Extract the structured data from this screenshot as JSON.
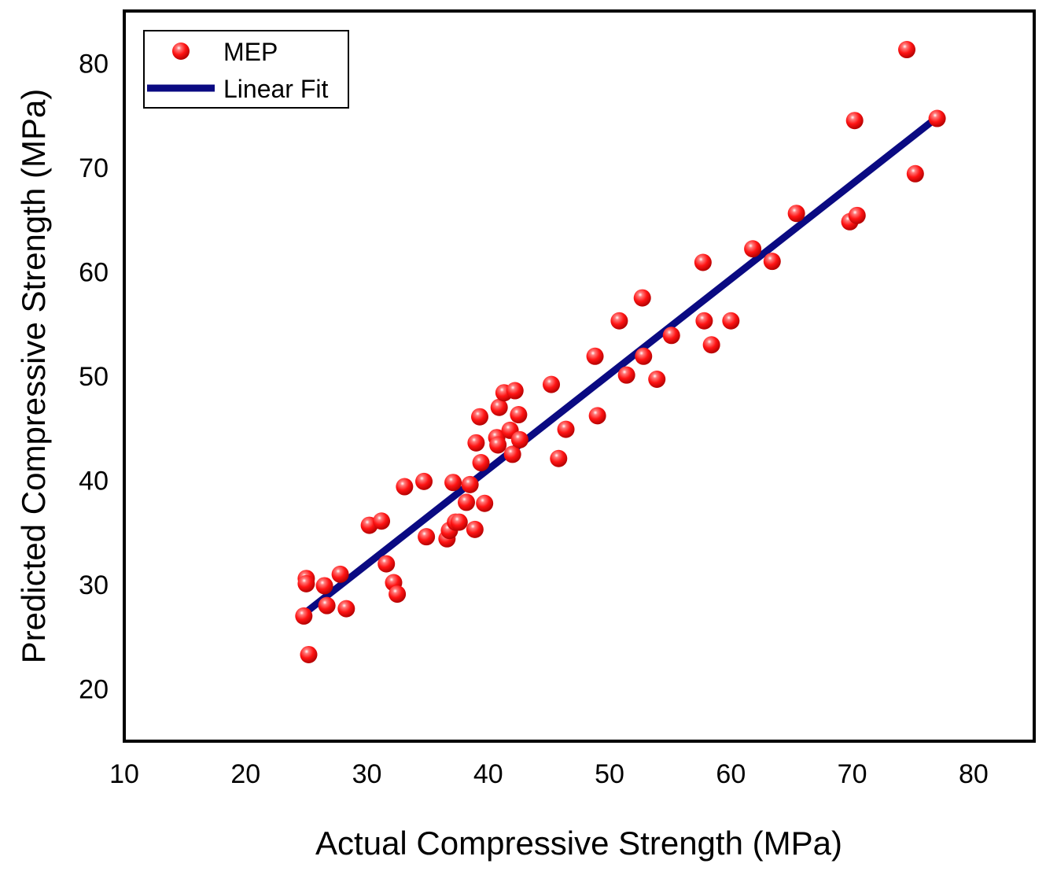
{
  "chart_data": {
    "type": "scatter",
    "xlabel": "Actual Compressive Strength (MPa)",
    "ylabel": "Predicted Compressive Strength (MPa)",
    "xlim": [
      10,
      85
    ],
    "ylim": [
      15,
      85
    ],
    "xticks": [
      10,
      20,
      30,
      40,
      50,
      60,
      70,
      80
    ],
    "yticks": [
      20,
      30,
      40,
      50,
      60,
      70,
      80
    ],
    "grid": false,
    "legend_position": "top-left",
    "series": [
      {
        "name": "MEP",
        "kind": "scatter",
        "color": "#ff1a1a",
        "points": [
          [
            24.8,
            27.0
          ],
          [
            25.2,
            23.3
          ],
          [
            25.0,
            30.6
          ],
          [
            25.0,
            30.1
          ],
          [
            26.5,
            29.9
          ],
          [
            26.7,
            28.0
          ],
          [
            27.8,
            31.0
          ],
          [
            28.3,
            27.7
          ],
          [
            30.2,
            35.7
          ],
          [
            31.2,
            36.1
          ],
          [
            31.6,
            32.0
          ],
          [
            32.2,
            30.2
          ],
          [
            32.5,
            29.1
          ],
          [
            33.1,
            39.4
          ],
          [
            34.7,
            39.9
          ],
          [
            34.9,
            34.6
          ],
          [
            36.6,
            34.4
          ],
          [
            36.8,
            35.2
          ],
          [
            37.1,
            39.8
          ],
          [
            37.3,
            36.0
          ],
          [
            37.6,
            36.0
          ],
          [
            38.2,
            37.9
          ],
          [
            38.5,
            39.6
          ],
          [
            38.9,
            35.3
          ],
          [
            39.0,
            43.6
          ],
          [
            39.3,
            46.1
          ],
          [
            39.4,
            41.7
          ],
          [
            39.7,
            37.8
          ],
          [
            40.7,
            44.1
          ],
          [
            40.8,
            43.4
          ],
          [
            40.9,
            47.0
          ],
          [
            41.3,
            48.4
          ],
          [
            41.8,
            44.8
          ],
          [
            42.0,
            42.5
          ],
          [
            42.2,
            48.6
          ],
          [
            42.5,
            46.3
          ],
          [
            42.6,
            43.9
          ],
          [
            45.2,
            49.2
          ],
          [
            45.8,
            42.1
          ],
          [
            46.4,
            44.9
          ],
          [
            48.8,
            51.9
          ],
          [
            49.0,
            46.2
          ],
          [
            50.8,
            55.3
          ],
          [
            51.4,
            50.1
          ],
          [
            52.7,
            57.5
          ],
          [
            52.8,
            51.9
          ],
          [
            53.9,
            49.7
          ],
          [
            55.1,
            53.9
          ],
          [
            57.7,
            60.9
          ],
          [
            57.8,
            55.3
          ],
          [
            58.4,
            53.0
          ],
          [
            60.0,
            55.3
          ],
          [
            61.8,
            62.2
          ],
          [
            63.4,
            61.0
          ],
          [
            65.4,
            65.6
          ],
          [
            69.8,
            64.8
          ],
          [
            70.2,
            74.5
          ],
          [
            70.4,
            65.4
          ],
          [
            74.5,
            81.3
          ],
          [
            75.2,
            69.4
          ],
          [
            77.0,
            74.7
          ]
        ]
      },
      {
        "name": "Linear Fit",
        "kind": "line",
        "color": "#0a0a82",
        "points": [
          [
            24.8,
            27.2
          ],
          [
            77.0,
            74.8
          ]
        ]
      }
    ]
  }
}
